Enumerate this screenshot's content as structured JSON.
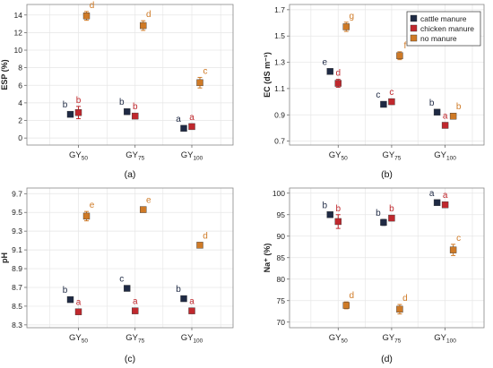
{
  "colors": {
    "cattle manure": "#1f2a44",
    "chicken manure": "#c0282d",
    "no manure": "#cf7a26"
  },
  "chart_data": [
    {
      "type": "scatter",
      "panel_label": "(a)",
      "ylabel": "ESP (%)",
      "ylim": [
        -0.8,
        15.2
      ],
      "yticks": [
        0,
        2,
        4,
        6,
        8,
        10,
        12,
        14
      ],
      "ytick_labels": [
        "0",
        "2",
        "4",
        "6",
        "8",
        "10",
        "12",
        "14"
      ],
      "categories": [
        "GY",
        "GY",
        "GY"
      ],
      "category_subscripts": [
        "50",
        "75",
        "100"
      ],
      "grid": true,
      "series": [
        {
          "name": "cattle manure",
          "values": [
            2.7,
            3.0,
            1.1
          ],
          "errors": [
            0.15,
            0.3,
            0.1
          ],
          "letters": [
            "b",
            "b",
            "a"
          ]
        },
        {
          "name": "chicken manure",
          "values": [
            2.9,
            2.5,
            1.3
          ],
          "errors": [
            0.7,
            0.2,
            0.1
          ],
          "letters": [
            "b",
            "b",
            "a"
          ]
        },
        {
          "name": "no manure",
          "values": [
            13.9,
            12.8,
            6.3
          ],
          "errors": [
            0.5,
            0.55,
            0.6
          ],
          "letters": [
            "d",
            "d",
            "c"
          ]
        }
      ]
    },
    {
      "type": "scatter",
      "panel_label": "(b)",
      "ylabel": "EC (dS m⁻¹)",
      "ylim": [
        0.67,
        1.74
      ],
      "yticks": [
        0.7,
        0.9,
        1.1,
        1.3,
        1.5,
        1.7
      ],
      "ytick_labels": [
        "0.7",
        "0.9",
        "1.1",
        "1.3",
        "1.5",
        "1.7"
      ],
      "categories": [
        "GY",
        "GY",
        "GY"
      ],
      "category_subscripts": [
        "50",
        "75",
        "100"
      ],
      "grid": true,
      "legend": {
        "position": "top-right",
        "entries": [
          "cattle manure",
          "chicken manure",
          "no manure"
        ]
      },
      "series": [
        {
          "name": "cattle manure",
          "values": [
            1.23,
            0.98,
            0.92
          ],
          "errors": [
            0.015,
            0.01,
            0.01
          ],
          "letters": [
            "e",
            "c",
            "b"
          ]
        },
        {
          "name": "chicken manure",
          "values": [
            1.14,
            1.0,
            0.82
          ],
          "errors": [
            0.03,
            0.02,
            0.01
          ],
          "letters": [
            "d",
            "c",
            "a"
          ]
        },
        {
          "name": "no manure",
          "values": [
            1.57,
            1.35,
            0.89
          ],
          "errors": [
            0.035,
            0.03,
            0.02
          ],
          "letters": [
            "g",
            "f",
            "b"
          ]
        }
      ]
    },
    {
      "type": "scatter",
      "panel_label": "(c)",
      "ylabel": "pH",
      "ylim": [
        8.27,
        9.76
      ],
      "yticks": [
        8.3,
        8.5,
        8.7,
        8.9,
        9.1,
        9.3,
        9.5,
        9.7
      ],
      "ytick_labels": [
        "8.3",
        "8.5",
        "8.7",
        "8.9",
        "9.1",
        "9.3",
        "9.5",
        "9.7"
      ],
      "categories": [
        "GY",
        "GY",
        "GY"
      ],
      "category_subscripts": [
        "50",
        "75",
        "100"
      ],
      "grid": true,
      "series": [
        {
          "name": "cattle manure",
          "values": [
            8.57,
            8.69,
            8.58
          ],
          "errors": [
            0.01,
            0.02,
            0.01
          ],
          "letters": [
            "b",
            "c",
            "b"
          ]
        },
        {
          "name": "chicken manure",
          "values": [
            8.44,
            8.45,
            8.45
          ],
          "errors": [
            0.01,
            0.01,
            0.01
          ],
          "letters": [
            "a",
            "a",
            "a"
          ]
        },
        {
          "name": "no manure",
          "values": [
            9.46,
            9.53,
            9.15
          ],
          "errors": [
            0.05,
            0.01,
            0.01
          ],
          "letters": [
            "e",
            "e",
            "d"
          ]
        }
      ]
    },
    {
      "type": "scatter",
      "panel_label": "(d)",
      "ylabel": "Na⁺ (%)",
      "ylim": [
        68.7,
        101.2
      ],
      "yticks": [
        70,
        75,
        80,
        85,
        90,
        95,
        100
      ],
      "ytick_labels": [
        "70",
        "75",
        "80",
        "85",
        "90",
        "95",
        "100"
      ],
      "categories": [
        "GY",
        "GY",
        "GY"
      ],
      "category_subscripts": [
        "50",
        "75",
        "100"
      ],
      "grid": true,
      "series": [
        {
          "name": "cattle manure",
          "values": [
            95.0,
            93.2,
            97.8
          ],
          "errors": [
            0.4,
            0.7,
            0.3
          ],
          "letters": [
            "b",
            "b",
            "a"
          ]
        },
        {
          "name": "chicken manure",
          "values": [
            93.4,
            94.2,
            97.3
          ],
          "errors": [
            1.6,
            0.3,
            0.3
          ],
          "letters": [
            "b",
            "b",
            "a"
          ]
        },
        {
          "name": "no manure",
          "values": [
            73.9,
            73.0,
            86.8
          ],
          "errors": [
            0.8,
            1.1,
            1.3
          ],
          "letters": [
            "d",
            "d",
            "c"
          ]
        }
      ]
    }
  ]
}
